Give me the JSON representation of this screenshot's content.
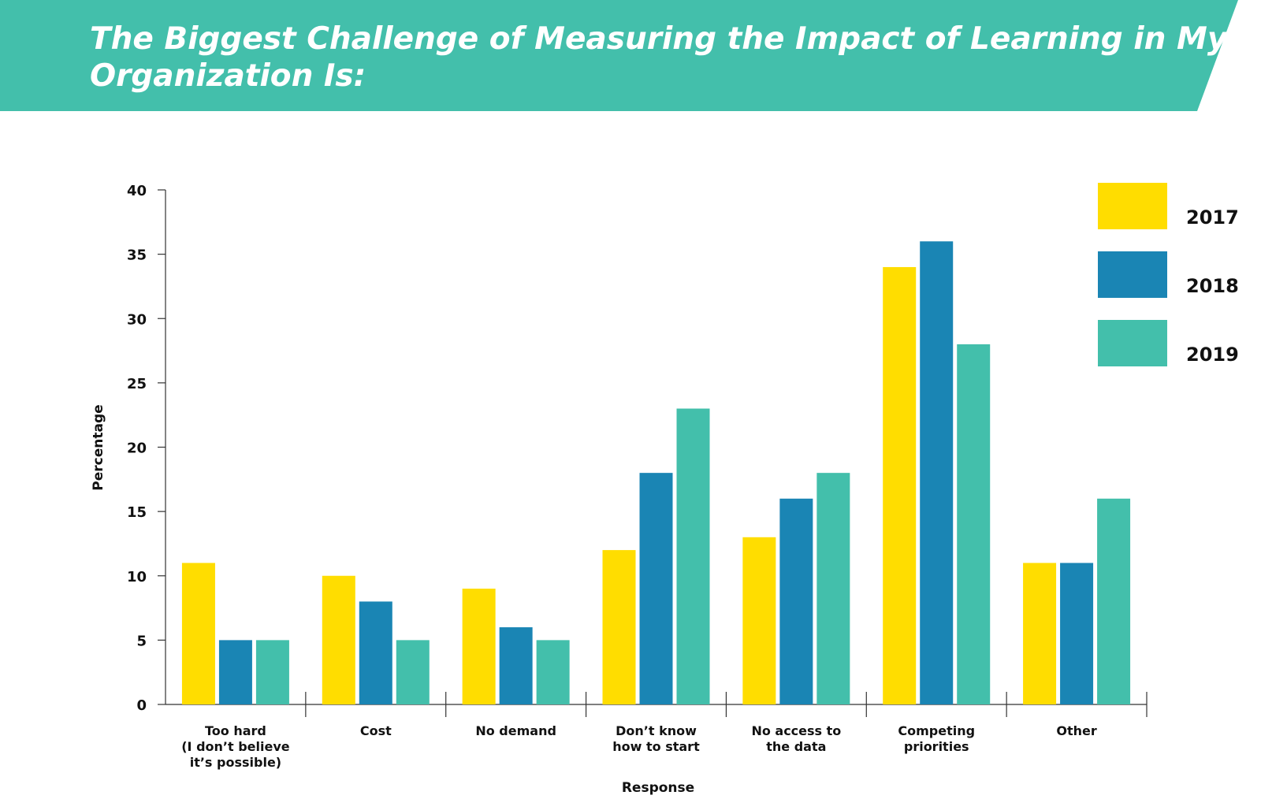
{
  "chart_data": {
    "type": "bar",
    "title_lines": [
      "The Biggest Challenge of Measuring the Impact of Learning in My",
      "Organization Is:"
    ],
    "xlabel": "Response",
    "ylabel": "Percentage",
    "ylim": [
      0,
      40
    ],
    "yticks": [
      "0",
      "5",
      "10",
      "15",
      "20",
      "25",
      "30",
      "35",
      "40"
    ],
    "categories": [
      [
        "Too hard",
        "(I don’t believe",
        "it’s possible)"
      ],
      [
        "Cost"
      ],
      [
        "No demand"
      ],
      [
        "Don’t know",
        "how to start"
      ],
      [
        "No access to",
        "the data"
      ],
      [
        "Competing",
        "priorities"
      ],
      [
        "Other"
      ]
    ],
    "series": [
      {
        "name": "2017",
        "color": "#FFDD00",
        "values": [
          11,
          10,
          9,
          12,
          13,
          34,
          11
        ]
      },
      {
        "name": "2018",
        "color": "#1A85B4",
        "values": [
          5,
          8,
          6,
          18,
          16,
          36,
          11
        ]
      },
      {
        "name": "2019",
        "color": "#43BFAB",
        "values": [
          5,
          5,
          5,
          23,
          18,
          28,
          16
        ]
      }
    ],
    "grid": false,
    "legend_position": "top-right",
    "banner_color": "#43BFAB"
  }
}
